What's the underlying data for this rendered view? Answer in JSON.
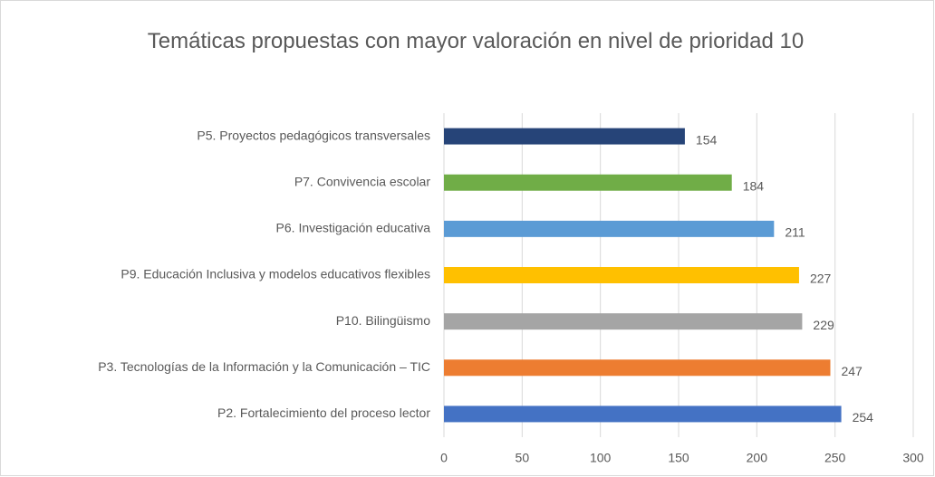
{
  "chart_data": {
    "type": "bar",
    "orientation": "horizontal",
    "title": "Temáticas propuestas con mayor valoración en nivel de prioridad 10",
    "categories": [
      "P5. Proyectos pedagógicos transversales",
      "P7. Convivencia escolar",
      "P6. Investigación educativa",
      "P9. Educación Inclusiva y modelos educativos flexibles",
      "P10. Bilingüismo",
      "P3. Tecnologías de la Información y la Comunicación – TIC",
      "P2. Fortalecimiento del proceso lector"
    ],
    "values": [
      154,
      184,
      211,
      227,
      229,
      247,
      254
    ],
    "colors": [
      "#264478",
      "#70ad47",
      "#5b9bd5",
      "#ffc000",
      "#a5a5a5",
      "#ed7d31",
      "#4472c4"
    ],
    "xlim": [
      0,
      300
    ],
    "xticks": [
      0,
      50,
      100,
      150,
      200,
      250,
      300
    ],
    "grid": true
  }
}
